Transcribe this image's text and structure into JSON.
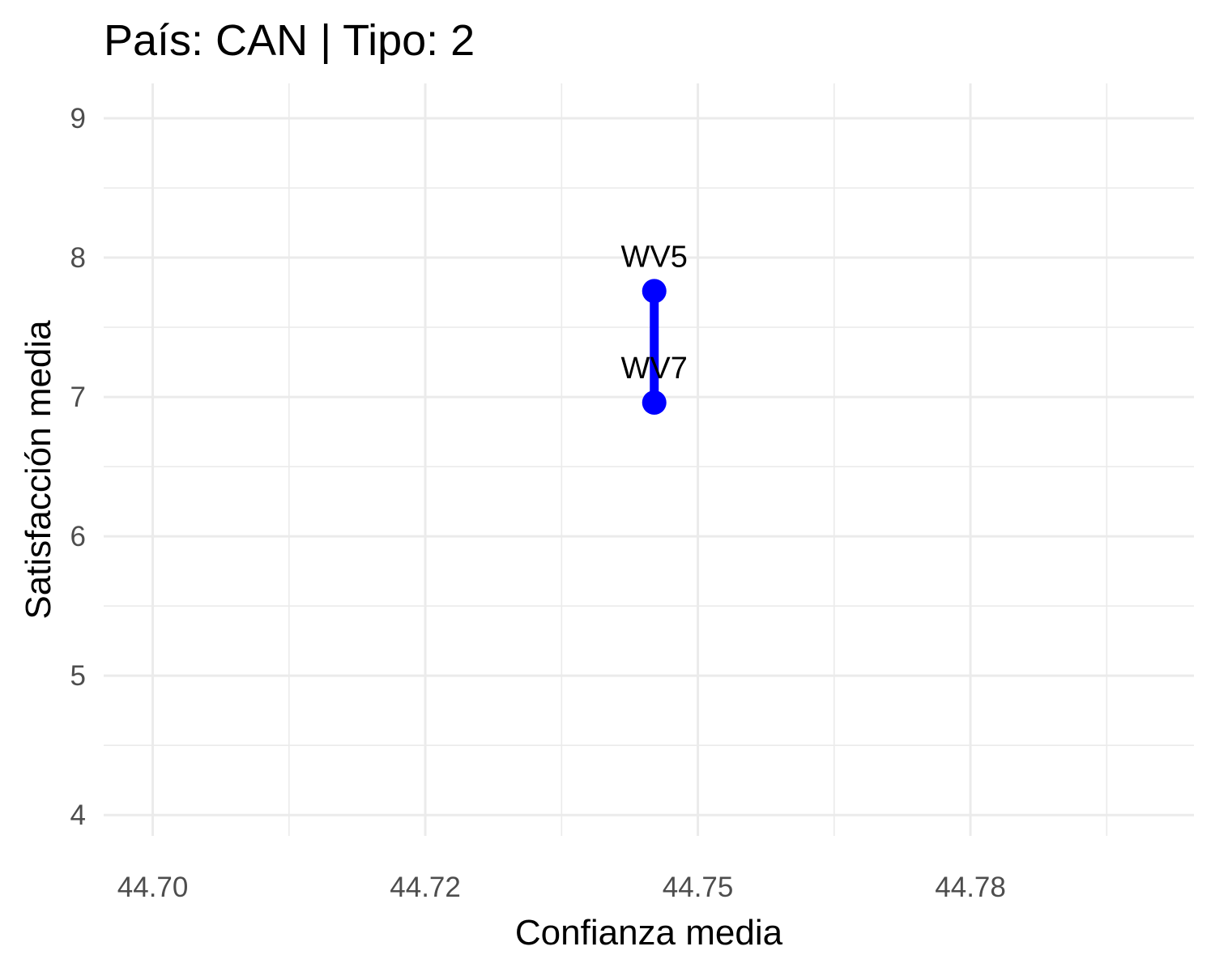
{
  "chart_data": {
    "type": "line",
    "title": "País: CAN | Tipo: 2",
    "xlabel": "Confianza media",
    "ylabel": "Satisfacción media",
    "xlim": [
      44.6955,
      44.7955
    ],
    "ylim": [
      3.85,
      9.25
    ],
    "x_ticks": [
      44.7,
      44.725,
      44.75,
      44.775
    ],
    "x_tick_labels": [
      "44.70",
      "44.72",
      "44.75",
      "44.78"
    ],
    "x_minor_ticks": [
      44.7125,
      44.7375,
      44.7625,
      44.7875
    ],
    "y_ticks": [
      4,
      5,
      6,
      7,
      8,
      9
    ],
    "y_tick_labels": [
      "4",
      "5",
      "6",
      "7",
      "8",
      "9"
    ],
    "y_minor_ticks": [
      4.5,
      5.5,
      6.5,
      7.5,
      8.5
    ],
    "grid": true,
    "legend": "none",
    "series": [
      {
        "color": "#0000ff",
        "points": [
          {
            "x": 44.746,
            "y": 7.76,
            "label": "WV5"
          },
          {
            "x": 44.746,
            "y": 6.96,
            "label": "WV7"
          }
        ]
      }
    ]
  }
}
